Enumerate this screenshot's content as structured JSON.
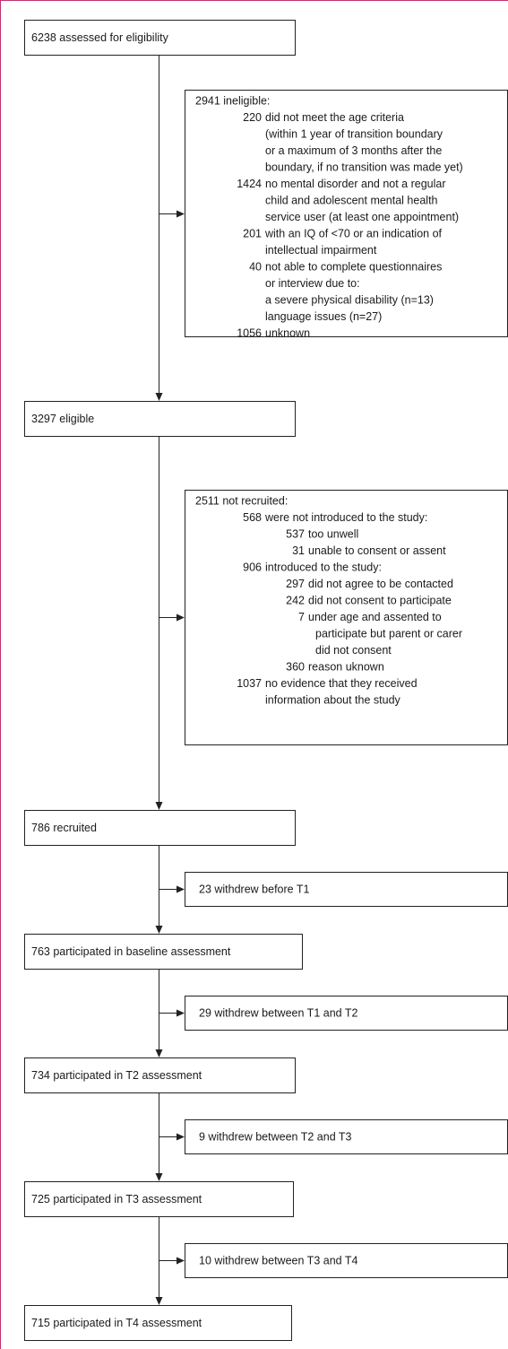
{
  "steps": [
    "6238 assessed for eligibility",
    "3297 eligible",
    "786 recruited",
    "763 participated in baseline assessment",
    "734 participated in T2 assessment",
    "725 participated in T3 assessment",
    "715 participated in T4 assessment"
  ],
  "exclusions": [
    {
      "heading": "2941 ineligible:",
      "items": [
        {
          "number": "220",
          "lines": [
            "did not meet the age criteria",
            "(within 1 year of transition boundary",
            "or a maximum of 3 months after the",
            "boundary, if no transition was made yet)"
          ]
        },
        {
          "number": "1424",
          "lines": [
            "no mental disorder and not a regular",
            "child and adolescent mental health",
            "service user (at least one appointment)"
          ]
        },
        {
          "number": "201",
          "lines": [
            "with an IQ of <70 or an indication of",
            "intellectual impairment"
          ]
        },
        {
          "number": "40",
          "lines": [
            "not able to complete questionnaires",
            "or interview due to:",
            "a severe physical disability (n=13)",
            "language issues (n=27)"
          ]
        },
        {
          "number": "1056",
          "lines": [
            "unknown"
          ]
        }
      ]
    },
    {
      "heading": "2511 not recruited:",
      "items": [
        {
          "number": "568",
          "lines": [
            "were not introduced to the study:"
          ],
          "items": [
            {
              "number": "537",
              "lines": [
                "too unwell"
              ]
            },
            {
              "number": "31",
              "lines": [
                "unable to consent or assent"
              ]
            }
          ]
        },
        {
          "number": "906",
          "lines": [
            "introduced to the study:"
          ],
          "items": [
            {
              "number": "297",
              "lines": [
                "did not agree to be contacted"
              ]
            },
            {
              "number": "242",
              "lines": [
                "did not consent to participate"
              ]
            },
            {
              "number": "7",
              "lines": [
                "under age and assented to",
                "participate but parent or carer",
                "did not consent"
              ]
            },
            {
              "number": "360",
              "lines": [
                "reason uknown"
              ]
            }
          ]
        },
        {
          "number": "1037",
          "lines": [
            "no evidence that they received",
            "information about the study"
          ]
        }
      ]
    },
    {
      "heading": "23 withdrew before T1"
    },
    {
      "heading": "29 withdrew between T1 and T2"
    },
    {
      "heading": "9 withdrew between T2 and T3"
    },
    {
      "heading": "10 withdrew between T3 and T4"
    }
  ]
}
